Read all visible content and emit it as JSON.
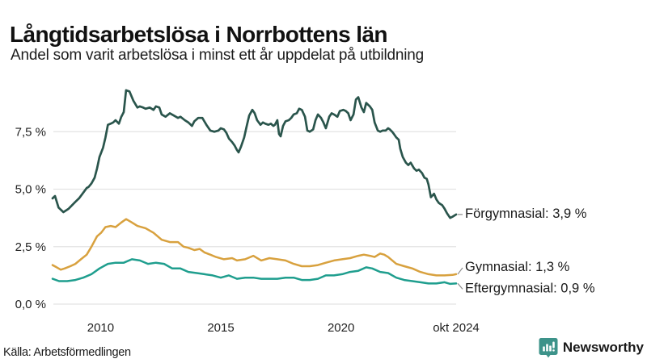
{
  "header": {
    "title": "Långtidsarbetslösa i Norrbottens län",
    "subtitle": "Andel som varit arbetslösa i minst ett år uppdelat på utbildning"
  },
  "footer": {
    "source": "Källa: Arbetsförmedlingen",
    "brand": "Newsworthy",
    "brand_color": "#3d938a"
  },
  "colors": {
    "grid": "#e3e3e3",
    "connector": "#8a8a8a",
    "forgymnasial": "#2a554c",
    "gymnasial": "#d8a13e",
    "eftergymnasial": "#1f9e8e"
  },
  "chart_data": {
    "type": "line",
    "title": "Långtidsarbetslösa i Norrbottens län",
    "subtitle": "Andel som varit arbetslösa i minst ett år uppdelat på utbildning",
    "xlabel": "",
    "ylabel": "",
    "unit": "%",
    "grid": true,
    "legend_position": "end-of-line",
    "x_axis": {
      "range": [
        2008.0,
        2024.79
      ],
      "ticks": [
        {
          "value": 2010,
          "label": "2010"
        },
        {
          "value": 2015,
          "label": "2015"
        },
        {
          "value": 2020,
          "label": "2020"
        },
        {
          "value": 2024.79,
          "label": "okt 2024"
        }
      ]
    },
    "y_axis": {
      "range": [
        0,
        9.55
      ],
      "ticks": [
        {
          "value": 7.5,
          "label": "7,5 %"
        },
        {
          "value": 5.0,
          "label": "5,0 %"
        },
        {
          "value": 2.5,
          "label": "2,5 %"
        },
        {
          "value": 0.0,
          "label": "0,0 %"
        }
      ]
    },
    "series": [
      {
        "name": "Förgymnasial",
        "end_value": "3,9 %",
        "end_label": "Förgymnasial: 3,9 %",
        "color": "#2a554c",
        "points": [
          [
            2008.0,
            4.6
          ],
          [
            2008.1,
            4.7
          ],
          [
            2008.25,
            4.2
          ],
          [
            2008.45,
            4.0
          ],
          [
            2008.67,
            4.15
          ],
          [
            2008.95,
            4.45
          ],
          [
            2009.1,
            4.6
          ],
          [
            2009.28,
            4.85
          ],
          [
            2009.42,
            5.05
          ],
          [
            2009.5,
            5.1
          ],
          [
            2009.62,
            5.25
          ],
          [
            2009.75,
            5.5
          ],
          [
            2009.85,
            5.9
          ],
          [
            2009.95,
            6.4
          ],
          [
            2010.1,
            6.8
          ],
          [
            2010.2,
            7.25
          ],
          [
            2010.3,
            7.8
          ],
          [
            2010.42,
            7.85
          ],
          [
            2010.52,
            7.9
          ],
          [
            2010.62,
            8.0
          ],
          [
            2010.76,
            7.85
          ],
          [
            2010.86,
            8.15
          ],
          [
            2010.96,
            8.35
          ],
          [
            2011.06,
            9.3
          ],
          [
            2011.2,
            9.25
          ],
          [
            2011.36,
            8.85
          ],
          [
            2011.53,
            8.55
          ],
          [
            2011.63,
            8.6
          ],
          [
            2011.77,
            8.55
          ],
          [
            2011.87,
            8.5
          ],
          [
            2012.04,
            8.55
          ],
          [
            2012.2,
            8.45
          ],
          [
            2012.3,
            8.6
          ],
          [
            2012.44,
            8.55
          ],
          [
            2012.54,
            8.25
          ],
          [
            2012.7,
            8.15
          ],
          [
            2012.88,
            8.3
          ],
          [
            2013.05,
            8.2
          ],
          [
            2013.22,
            8.1
          ],
          [
            2013.32,
            8.15
          ],
          [
            2013.5,
            8.0
          ],
          [
            2013.65,
            7.9
          ],
          [
            2013.8,
            7.75
          ],
          [
            2013.9,
            7.95
          ],
          [
            2014.06,
            8.1
          ],
          [
            2014.23,
            8.1
          ],
          [
            2014.4,
            7.8
          ],
          [
            2014.56,
            7.55
          ],
          [
            2014.73,
            7.5
          ],
          [
            2014.9,
            7.55
          ],
          [
            2015.0,
            7.65
          ],
          [
            2015.13,
            7.6
          ],
          [
            2015.23,
            7.45
          ],
          [
            2015.34,
            7.2
          ],
          [
            2015.47,
            7.05
          ],
          [
            2015.57,
            6.9
          ],
          [
            2015.67,
            6.7
          ],
          [
            2015.74,
            6.6
          ],
          [
            2015.84,
            6.85
          ],
          [
            2015.97,
            7.25
          ],
          [
            2016.08,
            7.75
          ],
          [
            2016.18,
            8.2
          ],
          [
            2016.31,
            8.45
          ],
          [
            2016.41,
            8.3
          ],
          [
            2016.51,
            8.0
          ],
          [
            2016.65,
            7.8
          ],
          [
            2016.75,
            7.9
          ],
          [
            2016.85,
            7.85
          ],
          [
            2016.98,
            7.8
          ],
          [
            2017.08,
            7.85
          ],
          [
            2017.19,
            7.75
          ],
          [
            2017.25,
            7.8
          ],
          [
            2017.35,
            8.0
          ],
          [
            2017.42,
            7.4
          ],
          [
            2017.49,
            7.3
          ],
          [
            2017.59,
            7.75
          ],
          [
            2017.69,
            7.95
          ],
          [
            2017.83,
            8.0
          ],
          [
            2017.93,
            8.1
          ],
          [
            2018.03,
            8.25
          ],
          [
            2018.16,
            8.3
          ],
          [
            2018.26,
            8.5
          ],
          [
            2018.37,
            8.45
          ],
          [
            2018.5,
            8.15
          ],
          [
            2018.6,
            7.55
          ],
          [
            2018.7,
            7.5
          ],
          [
            2018.84,
            7.6
          ],
          [
            2018.94,
            8.0
          ],
          [
            2019.04,
            8.25
          ],
          [
            2019.17,
            8.1
          ],
          [
            2019.27,
            7.9
          ],
          [
            2019.37,
            7.65
          ],
          [
            2019.51,
            8.15
          ],
          [
            2019.61,
            8.3
          ],
          [
            2019.71,
            8.25
          ],
          [
            2019.85,
            8.15
          ],
          [
            2019.95,
            8.4
          ],
          [
            2020.1,
            8.45
          ],
          [
            2020.2,
            8.4
          ],
          [
            2020.3,
            8.3
          ],
          [
            2020.4,
            8.0
          ],
          [
            2020.52,
            8.25
          ],
          [
            2020.62,
            8.9
          ],
          [
            2020.72,
            9.0
          ],
          [
            2020.85,
            8.55
          ],
          [
            2020.95,
            8.35
          ],
          [
            2021.05,
            8.75
          ],
          [
            2021.2,
            8.6
          ],
          [
            2021.3,
            8.45
          ],
          [
            2021.4,
            7.9
          ],
          [
            2021.53,
            7.55
          ],
          [
            2021.63,
            7.5
          ],
          [
            2021.73,
            7.55
          ],
          [
            2021.86,
            7.55
          ],
          [
            2021.96,
            7.65
          ],
          [
            2022.03,
            7.6
          ],
          [
            2022.13,
            7.5
          ],
          [
            2022.2,
            7.4
          ],
          [
            2022.3,
            7.25
          ],
          [
            2022.4,
            7.15
          ],
          [
            2022.47,
            6.75
          ],
          [
            2022.57,
            6.4
          ],
          [
            2022.7,
            6.15
          ],
          [
            2022.8,
            6.05
          ],
          [
            2022.9,
            6.15
          ],
          [
            2023.04,
            5.9
          ],
          [
            2023.14,
            5.8
          ],
          [
            2023.24,
            5.85
          ],
          [
            2023.37,
            5.7
          ],
          [
            2023.47,
            5.5
          ],
          [
            2023.57,
            5.45
          ],
          [
            2023.64,
            5.2
          ],
          [
            2023.74,
            4.65
          ],
          [
            2023.87,
            4.8
          ],
          [
            2023.97,
            4.55
          ],
          [
            2024.07,
            4.4
          ],
          [
            2024.21,
            4.3
          ],
          [
            2024.31,
            4.15
          ],
          [
            2024.41,
            3.95
          ],
          [
            2024.54,
            3.75
          ],
          [
            2024.64,
            3.8
          ],
          [
            2024.79,
            3.9
          ]
        ]
      },
      {
        "name": "Gymnasial",
        "end_value": "1,3 %",
        "end_label": "Gymnasial: 1,3 %",
        "color": "#d8a13e",
        "points": [
          [
            2008.0,
            1.7
          ],
          [
            2008.17,
            1.6
          ],
          [
            2008.34,
            1.5
          ],
          [
            2008.5,
            1.55
          ],
          [
            2008.74,
            1.65
          ],
          [
            2008.95,
            1.75
          ],
          [
            2009.18,
            1.95
          ],
          [
            2009.42,
            2.15
          ],
          [
            2009.62,
            2.5
          ],
          [
            2009.85,
            2.95
          ],
          [
            2010.02,
            3.1
          ],
          [
            2010.2,
            3.35
          ],
          [
            2010.42,
            3.4
          ],
          [
            2010.62,
            3.35
          ],
          [
            2010.86,
            3.55
          ],
          [
            2011.06,
            3.7
          ],
          [
            2011.3,
            3.55
          ],
          [
            2011.53,
            3.4
          ],
          [
            2011.87,
            3.3
          ],
          [
            2012.2,
            3.1
          ],
          [
            2012.54,
            2.8
          ],
          [
            2012.88,
            2.7
          ],
          [
            2013.22,
            2.7
          ],
          [
            2013.45,
            2.5
          ],
          [
            2013.65,
            2.45
          ],
          [
            2013.9,
            2.35
          ],
          [
            2014.12,
            2.4
          ],
          [
            2014.32,
            2.25
          ],
          [
            2014.56,
            2.15
          ],
          [
            2014.8,
            2.05
          ],
          [
            2015.13,
            1.95
          ],
          [
            2015.47,
            2.0
          ],
          [
            2015.67,
            1.9
          ],
          [
            2016.01,
            1.95
          ],
          [
            2016.35,
            2.1
          ],
          [
            2016.68,
            1.9
          ],
          [
            2017.02,
            2.0
          ],
          [
            2017.35,
            1.95
          ],
          [
            2017.69,
            1.9
          ],
          [
            2018.03,
            1.75
          ],
          [
            2018.37,
            1.65
          ],
          [
            2018.7,
            1.65
          ],
          [
            2019.04,
            1.7
          ],
          [
            2019.37,
            1.8
          ],
          [
            2019.71,
            1.9
          ],
          [
            2020.05,
            1.95
          ],
          [
            2020.38,
            2.0
          ],
          [
            2020.72,
            2.1
          ],
          [
            2020.95,
            2.15
          ],
          [
            2021.2,
            2.1
          ],
          [
            2021.4,
            2.05
          ],
          [
            2021.63,
            2.2
          ],
          [
            2021.8,
            2.15
          ],
          [
            2021.96,
            2.05
          ],
          [
            2022.3,
            1.75
          ],
          [
            2022.63,
            1.65
          ],
          [
            2022.97,
            1.55
          ],
          [
            2023.3,
            1.4
          ],
          [
            2023.64,
            1.3
          ],
          [
            2023.97,
            1.25
          ],
          [
            2024.31,
            1.25
          ],
          [
            2024.64,
            1.27
          ],
          [
            2024.79,
            1.3
          ]
        ]
      },
      {
        "name": "Eftergymnasial",
        "end_value": "0,9 %",
        "end_label": "Eftergymnasial: 0,9 %",
        "color": "#1f9e8e",
        "points": [
          [
            2008.0,
            1.1
          ],
          [
            2008.27,
            1.0
          ],
          [
            2008.61,
            1.0
          ],
          [
            2008.95,
            1.05
          ],
          [
            2009.28,
            1.15
          ],
          [
            2009.62,
            1.3
          ],
          [
            2009.95,
            1.55
          ],
          [
            2010.3,
            1.75
          ],
          [
            2010.62,
            1.8
          ],
          [
            2010.96,
            1.8
          ],
          [
            2011.3,
            1.95
          ],
          [
            2011.63,
            1.9
          ],
          [
            2011.97,
            1.75
          ],
          [
            2012.3,
            1.8
          ],
          [
            2012.64,
            1.75
          ],
          [
            2012.98,
            1.55
          ],
          [
            2013.32,
            1.55
          ],
          [
            2013.65,
            1.4
          ],
          [
            2014.0,
            1.35
          ],
          [
            2014.32,
            1.3
          ],
          [
            2014.66,
            1.25
          ],
          [
            2015.0,
            1.15
          ],
          [
            2015.33,
            1.25
          ],
          [
            2015.67,
            1.1
          ],
          [
            2016.01,
            1.15
          ],
          [
            2016.35,
            1.15
          ],
          [
            2016.68,
            1.1
          ],
          [
            2017.02,
            1.1
          ],
          [
            2017.35,
            1.1
          ],
          [
            2017.69,
            1.15
          ],
          [
            2018.03,
            1.15
          ],
          [
            2018.37,
            1.05
          ],
          [
            2018.7,
            1.05
          ],
          [
            2019.04,
            1.1
          ],
          [
            2019.37,
            1.25
          ],
          [
            2019.71,
            1.25
          ],
          [
            2020.05,
            1.3
          ],
          [
            2020.38,
            1.4
          ],
          [
            2020.72,
            1.45
          ],
          [
            2021.05,
            1.6
          ],
          [
            2021.3,
            1.55
          ],
          [
            2021.63,
            1.4
          ],
          [
            2021.96,
            1.35
          ],
          [
            2022.3,
            1.15
          ],
          [
            2022.63,
            1.05
          ],
          [
            2022.97,
            1.0
          ],
          [
            2023.3,
            0.95
          ],
          [
            2023.64,
            0.9
          ],
          [
            2023.97,
            0.9
          ],
          [
            2024.31,
            0.95
          ],
          [
            2024.54,
            0.88
          ],
          [
            2024.79,
            0.9
          ]
        ]
      }
    ]
  }
}
